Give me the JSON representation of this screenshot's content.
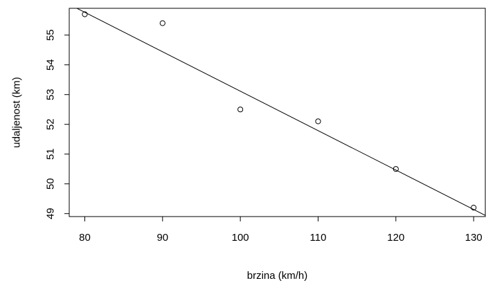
{
  "chart_data": {
    "type": "scatter",
    "xlabel": "brzina (km/h)",
    "ylabel": "udaljenost (km)",
    "xlim": [
      78,
      131.5
    ],
    "ylim": [
      48.9,
      55.9
    ],
    "x_ticks": [
      80,
      90,
      100,
      110,
      120,
      130
    ],
    "y_ticks": [
      49,
      50,
      51,
      52,
      53,
      54,
      55
    ],
    "points": [
      {
        "x": 80,
        "y": 55.7
      },
      {
        "x": 90,
        "y": 55.4
      },
      {
        "x": 100,
        "y": 52.5
      },
      {
        "x": 110,
        "y": 52.1
      },
      {
        "x": 120,
        "y": 50.5
      },
      {
        "x": 130,
        "y": 49.2
      }
    ],
    "regression_line": {
      "x": [
        78,
        131.5
      ],
      "y": [
        56.03,
        48.94
      ]
    },
    "grid": false,
    "legend": "none"
  }
}
